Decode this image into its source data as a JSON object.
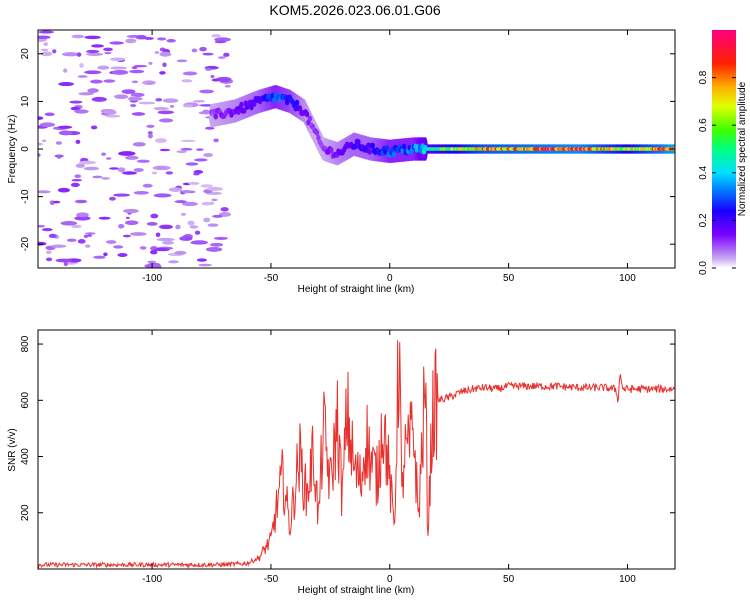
{
  "chart_data": [
    {
      "type": "heatmap",
      "title": "KOM5.2026.023.06.01.G06",
      "xlabel": "Height of straight line (km)",
      "ylabel": "Frequency (Hz)",
      "xlim": [
        -148,
        120
      ],
      "ylim": [
        -25,
        25
      ],
      "xticks": [
        -100,
        -50,
        0,
        50,
        100
      ],
      "yticks": [
        -20,
        -10,
        0,
        10,
        20
      ],
      "colorbar": {
        "label": "Normalized spectral amplitude",
        "range": [
          0,
          1
        ],
        "ticks": [
          0.0,
          0.2,
          0.4,
          0.6,
          0.8
        ],
        "tick_labels": [
          "0.0",
          "0.2",
          "0.4",
          "0.6",
          "0.8"
        ]
      },
      "ridge": {
        "x": [
          -75,
          -65,
          -55,
          -48,
          -42,
          -36,
          -32,
          -28,
          -22,
          -15,
          -8,
          0,
          10,
          20,
          40,
          60,
          80,
          100,
          120
        ],
        "freq": [
          7,
          8,
          10,
          11,
          10,
          8,
          4,
          0,
          -1,
          1,
          0,
          -0.5,
          0,
          0,
          0,
          0,
          0,
          0,
          0
        ],
        "amplitude": [
          0.1,
          0.15,
          0.2,
          0.3,
          0.25,
          0.15,
          0.1,
          0.1,
          0.15,
          0.2,
          0.2,
          0.3,
          0.3,
          0.5,
          0.75,
          0.8,
          0.85,
          0.6,
          0.9
        ]
      }
    },
    {
      "type": "line",
      "xlabel": "Height of straight line (km)",
      "ylabel": "SNR (v/v)",
      "xlim": [
        -148,
        120
      ],
      "ylim": [
        0,
        850
      ],
      "xticks": [
        -100,
        -50,
        0,
        50,
        100
      ],
      "yticks": [
        200,
        400,
        600,
        800
      ],
      "color": "#e8302c",
      "series": [
        {
          "name": "SNR",
          "x": [
            -148,
            -120,
            -90,
            -70,
            -60,
            -55,
            -52,
            -50,
            -48,
            -45,
            -42,
            -40,
            -38,
            -35,
            -32,
            -30,
            -28,
            -25,
            -22,
            -20,
            -18,
            -15,
            -12,
            -10,
            -8,
            -5,
            -3,
            -1,
            0,
            2,
            3,
            4,
            5,
            6,
            8,
            10,
            12,
            14,
            15,
            16,
            18,
            20,
            25,
            30,
            35,
            40,
            45,
            50,
            60,
            70,
            80,
            90,
            95,
            96,
            97,
            98,
            100,
            110,
            120
          ],
          "y": [
            15,
            15,
            15,
            15,
            20,
            40,
            80,
            100,
            200,
            330,
            150,
            280,
            400,
            260,
            420,
            170,
            500,
            300,
            530,
            250,
            560,
            350,
            310,
            480,
            380,
            320,
            550,
            400,
            300,
            150,
            520,
            850,
            230,
            400,
            420,
            510,
            180,
            500,
            650,
            120,
            550,
            600,
            610,
            630,
            640,
            645,
            640,
            650,
            650,
            650,
            645,
            645,
            640,
            600,
            700,
            640,
            640,
            640,
            640
          ]
        }
      ]
    }
  ]
}
